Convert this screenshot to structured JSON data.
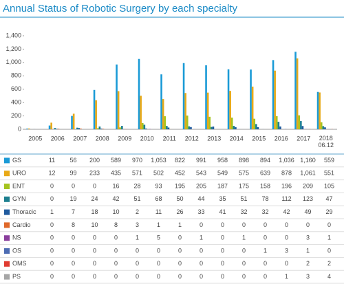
{
  "chart_data": {
    "type": "bar",
    "title": "Annual Status of Robotic Surgery by each specialty",
    "categories": [
      "2005",
      "2006",
      "2007",
      "2008",
      "2009",
      "2010",
      "2011",
      "2012",
      "2013",
      "2014",
      "2015",
      "2016",
      "2017",
      "2018 06.12"
    ],
    "ylim": [
      0,
      1400
    ],
    "yticks": [
      0,
      200,
      400,
      600,
      800,
      {
        "value": 1000,
        "label": "1,000"
      },
      {
        "value": 1200,
        "label": "1,200"
      },
      {
        "value": 1400,
        "label": "1,400"
      }
    ],
    "grid": false,
    "series": [
      {
        "name": "GS",
        "color": "#1a9ad6",
        "values": [
          11,
          56,
          200,
          589,
          970,
          1053,
          822,
          991,
          958,
          898,
          894,
          1036,
          1160,
          559
        ],
        "value_labels": [
          "11",
          "56",
          "200",
          "589",
          "970",
          "1,053",
          "822",
          "991",
          "958",
          "898",
          "894",
          "1,036",
          "1,160",
          "559"
        ]
      },
      {
        "name": "URO",
        "color": "#e8a917",
        "values": [
          12,
          99,
          233,
          435,
          571,
          502,
          452,
          543,
          549,
          575,
          639,
          878,
          1061,
          551
        ],
        "value_labels": [
          "12",
          "99",
          "233",
          "435",
          "571",
          "502",
          "452",
          "543",
          "549",
          "575",
          "639",
          "878",
          "1,061",
          "551"
        ]
      },
      {
        "name": "ENT",
        "color": "#a5c420",
        "values": [
          0,
          0,
          0,
          16,
          28,
          93,
          195,
          205,
          187,
          175,
          158,
          196,
          209,
          105
        ]
      },
      {
        "name": "GYN",
        "color": "#1d7f8f",
        "values": [
          0,
          19,
          24,
          42,
          51,
          68,
          50,
          44,
          35,
          51,
          78,
          112,
          123,
          47
        ]
      },
      {
        "name": "Thoracic",
        "color": "#1f5a9e",
        "values": [
          1,
          7,
          18,
          10,
          2,
          11,
          26,
          33,
          41,
          32,
          32,
          42,
          49,
          29
        ]
      },
      {
        "name": "Cardio",
        "color": "#e0692a",
        "values": [
          0,
          8,
          10,
          8,
          3,
          1,
          1,
          0,
          0,
          0,
          0,
          0,
          0,
          0
        ]
      },
      {
        "name": "NS",
        "color": "#8a3f9c",
        "values": [
          0,
          0,
          0,
          0,
          1,
          5,
          0,
          1,
          0,
          1,
          0,
          0,
          3,
          1
        ]
      },
      {
        "name": "OS",
        "color": "#4d6cb3",
        "values": [
          0,
          0,
          0,
          0,
          0,
          0,
          0,
          0,
          0,
          0,
          1,
          3,
          1,
          0
        ]
      },
      {
        "name": "OMS",
        "color": "#e03c31",
        "values": [
          0,
          0,
          0,
          0,
          0,
          0,
          0,
          0,
          0,
          0,
          0,
          0,
          2,
          2
        ]
      },
      {
        "name": "PS",
        "color": "#a6a6a6",
        "values": [
          0,
          0,
          0,
          0,
          0,
          0,
          0,
          0,
          0,
          0,
          0,
          1,
          3,
          4
        ]
      }
    ]
  }
}
